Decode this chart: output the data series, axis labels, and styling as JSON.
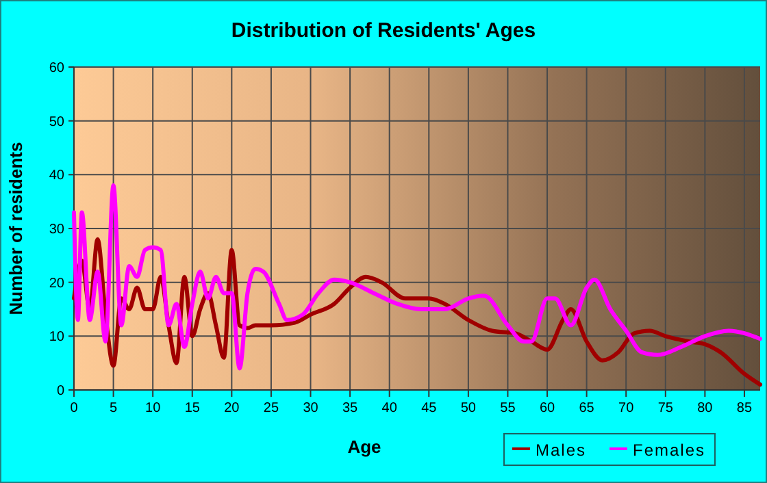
{
  "chart_data": {
    "type": "line",
    "title": "Distribution of Residents' Ages",
    "xlabel": "Age",
    "ylabel": "Number of residents",
    "xlim": [
      0,
      87
    ],
    "xticks": [
      0,
      5,
      10,
      15,
      20,
      25,
      30,
      35,
      40,
      45,
      50,
      55,
      60,
      65,
      70,
      75,
      80,
      85
    ],
    "ylim": [
      0,
      60
    ],
    "yticks": [
      0,
      10,
      20,
      30,
      40,
      50,
      60
    ],
    "grid": true,
    "legend": "bottom right",
    "line_style": "solid",
    "marker": "none",
    "series": [
      {
        "name": "Males",
        "color": "#a00000",
        "x": [
          0,
          1,
          2,
          3,
          4,
          5,
          6,
          7,
          8,
          9,
          10,
          11,
          12,
          13,
          14,
          15,
          16,
          17,
          18,
          19,
          20,
          21,
          22,
          23,
          25,
          28,
          30,
          33,
          35,
          37,
          39,
          42,
          45,
          47,
          50,
          53,
          56,
          58,
          60,
          62,
          63,
          65,
          67,
          69,
          71,
          73,
          75,
          78,
          80,
          82,
          85,
          87
        ],
        "values": [
          17,
          24,
          15,
          28,
          14,
          4.5,
          17,
          15,
          19,
          15,
          15,
          21,
          12,
          5,
          21,
          10,
          15,
          18,
          12,
          6,
          26,
          12,
          11.5,
          12,
          12,
          12.5,
          14,
          16,
          19,
          21,
          20,
          17,
          17,
          16,
          13,
          11,
          10.5,
          9,
          7.5,
          13,
          15,
          9,
          5.5,
          7,
          10.5,
          11,
          10,
          9,
          8.5,
          7,
          3,
          1
        ]
      },
      {
        "name": "Females",
        "color": "#ff00ff",
        "x": [
          0,
          0.5,
          1,
          2,
          3,
          4,
          5,
          6,
          7,
          8,
          9,
          10,
          11,
          12,
          13,
          14,
          15,
          16,
          17,
          18,
          19,
          20,
          21,
          22,
          23,
          24,
          26,
          27,
          29,
          31,
          33,
          35,
          38,
          41,
          44,
          47,
          50,
          52,
          55,
          57,
          58,
          60,
          61,
          63,
          65,
          66,
          68,
          70,
          72,
          74,
          77,
          80,
          83,
          87
        ],
        "values": [
          33,
          13,
          33,
          13,
          22,
          9,
          38,
          12,
          23,
          21,
          26,
          26.5,
          26,
          12,
          16,
          8,
          16,
          22,
          17,
          21,
          18,
          18,
          4,
          18,
          22.5,
          22,
          16,
          13,
          14,
          18,
          20.5,
          20,
          18,
          16,
          15,
          15,
          17,
          17.5,
          12,
          9,
          9,
          17,
          17,
          12,
          19,
          20.5,
          15,
          11,
          7,
          6.5,
          8,
          10,
          11,
          9.5
        ]
      }
    ]
  }
}
